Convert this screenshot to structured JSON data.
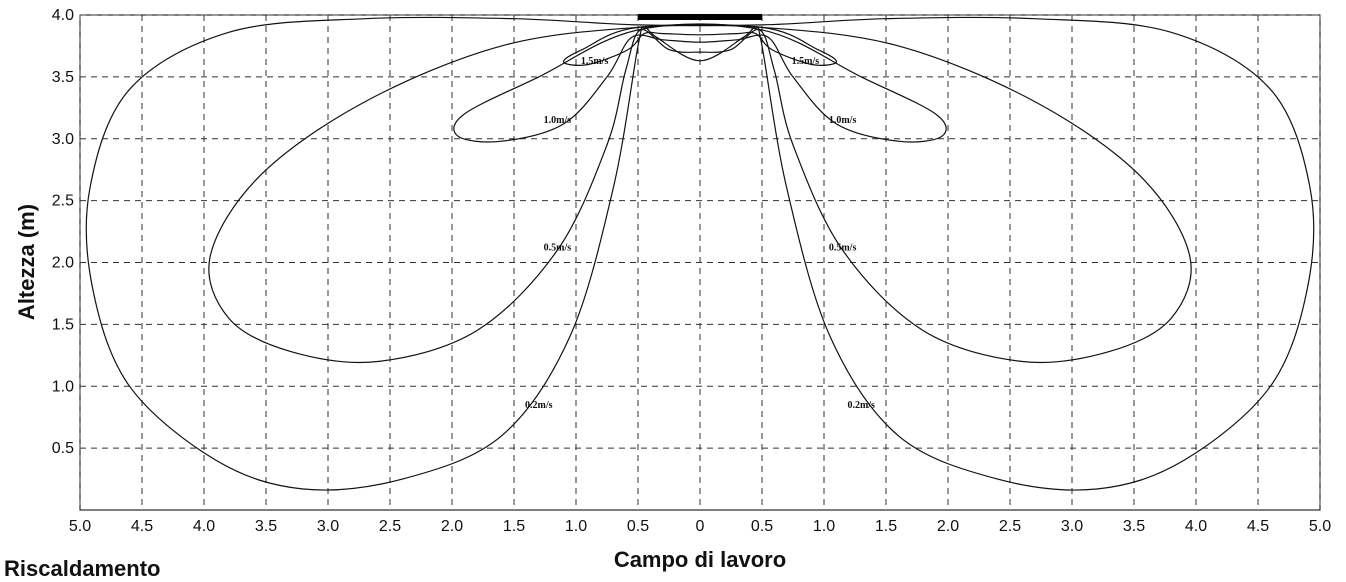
{
  "chart_data": {
    "type": "line",
    "title": "",
    "xlabel": "Campo di lavoro",
    "ylabel": "Altezza (m)",
    "x_domain": [
      -5.0,
      5.0
    ],
    "x_tick_values": [
      -5.0,
      -4.5,
      -4.0,
      -3.5,
      -3.0,
      -2.5,
      -2.0,
      -1.5,
      -1.0,
      -0.5,
      0,
      0.5,
      1.0,
      1.5,
      2.0,
      2.5,
      3.0,
      3.5,
      4.0,
      4.5,
      5.0
    ],
    "x_tick_labels": [
      "5.0",
      "4.5",
      "4.0",
      "3.5",
      "3.0",
      "2.5",
      "2.0",
      "1.5",
      "1.0",
      "0.5",
      "0",
      "0.5",
      "1.0",
      "1.5",
      "2.0",
      "2.5",
      "3.0",
      "3.5",
      "4.0",
      "4.5",
      "5.0"
    ],
    "ylim": [
      0,
      4.0
    ],
    "y_tick_values": [
      0.5,
      1.0,
      1.5,
      2.0,
      2.5,
      3.0,
      3.5,
      4.0
    ],
    "y_tick_labels": [
      "0.5",
      "1.0",
      "1.5",
      "2.0",
      "2.5",
      "3.0",
      "3.5",
      "4.0"
    ],
    "grid": true,
    "grid_style": "dashed",
    "outlet": {
      "x_range": [
        -0.5,
        0.5
      ],
      "y": 4.0
    },
    "series": [
      {
        "label_text": "0.2m/s",
        "label_positions": [
          [
            -1.3,
            0.85
          ],
          [
            1.3,
            0.85
          ]
        ],
        "points": [
          [
            -0.5,
            3.92
          ],
          [
            -1.5,
            3.97
          ],
          [
            -2.7,
            3.97
          ],
          [
            -3.8,
            3.86
          ],
          [
            -4.6,
            3.4
          ],
          [
            -4.92,
            2.6
          ],
          [
            -4.9,
            1.8
          ],
          [
            -4.6,
            1.0
          ],
          [
            -3.9,
            0.4
          ],
          [
            -3.2,
            0.17
          ],
          [
            -2.4,
            0.25
          ],
          [
            -1.6,
            0.6
          ],
          [
            -1.05,
            1.4
          ],
          [
            -0.7,
            2.6
          ],
          [
            -0.5,
            3.75
          ],
          [
            -0.45,
            3.9
          ],
          [
            -0.35,
            3.82
          ],
          [
            0,
            3.63
          ],
          [
            0.35,
            3.82
          ],
          [
            0.45,
            3.9
          ],
          [
            0.5,
            3.75
          ],
          [
            0.7,
            2.6
          ],
          [
            1.05,
            1.4
          ],
          [
            1.6,
            0.6
          ],
          [
            2.4,
            0.25
          ],
          [
            3.2,
            0.17
          ],
          [
            3.9,
            0.4
          ],
          [
            4.6,
            1.0
          ],
          [
            4.9,
            1.8
          ],
          [
            4.92,
            2.6
          ],
          [
            4.6,
            3.4
          ],
          [
            3.8,
            3.86
          ],
          [
            2.7,
            3.97
          ],
          [
            1.5,
            3.97
          ],
          [
            0.5,
            3.92
          ]
        ]
      },
      {
        "label_text": "0.5m/s",
        "label_positions": [
          [
            -1.15,
            2.12
          ],
          [
            1.15,
            2.12
          ]
        ],
        "points": [
          [
            -0.5,
            3.9
          ],
          [
            -1.6,
            3.75
          ],
          [
            -2.7,
            3.3
          ],
          [
            -3.55,
            2.7
          ],
          [
            -3.95,
            2.05
          ],
          [
            -3.8,
            1.55
          ],
          [
            -3.3,
            1.28
          ],
          [
            -2.6,
            1.2
          ],
          [
            -1.8,
            1.45
          ],
          [
            -1.15,
            2.1
          ],
          [
            -0.75,
            2.95
          ],
          [
            -0.6,
            3.55
          ],
          [
            -0.48,
            3.88
          ],
          [
            -0.25,
            3.72
          ],
          [
            0,
            3.7
          ],
          [
            0.25,
            3.72
          ],
          [
            0.48,
            3.88
          ],
          [
            0.6,
            3.55
          ],
          [
            0.75,
            2.95
          ],
          [
            1.15,
            2.1
          ],
          [
            1.8,
            1.45
          ],
          [
            2.6,
            1.2
          ],
          [
            3.3,
            1.28
          ],
          [
            3.8,
            1.55
          ],
          [
            3.95,
            2.05
          ],
          [
            3.55,
            2.7
          ],
          [
            2.7,
            3.3
          ],
          [
            1.6,
            3.75
          ],
          [
            0.5,
            3.9
          ]
        ]
      },
      {
        "label_text": "1.0m/s",
        "label_positions": [
          [
            -1.15,
            3.15
          ],
          [
            1.15,
            3.15
          ]
        ],
        "points": [
          [
            -0.5,
            3.88
          ],
          [
            -1.3,
            3.5
          ],
          [
            -1.9,
            3.2
          ],
          [
            -1.95,
            3.02
          ],
          [
            -1.6,
            2.98
          ],
          [
            -1.1,
            3.12
          ],
          [
            -0.75,
            3.5
          ],
          [
            -0.55,
            3.82
          ],
          [
            -0.3,
            3.8
          ],
          [
            0,
            3.78
          ],
          [
            0.3,
            3.8
          ],
          [
            0.55,
            3.82
          ],
          [
            0.75,
            3.5
          ],
          [
            1.1,
            3.12
          ],
          [
            1.6,
            2.98
          ],
          [
            1.95,
            3.02
          ],
          [
            1.9,
            3.2
          ],
          [
            1.3,
            3.5
          ],
          [
            0.5,
            3.88
          ]
        ]
      },
      {
        "label_text": "1.5m/s",
        "label_positions": [
          [
            -0.85,
            3.63
          ],
          [
            0.85,
            3.63
          ]
        ],
        "points": [
          [
            -0.5,
            3.9
          ],
          [
            -0.95,
            3.72
          ],
          [
            -1.1,
            3.62
          ],
          [
            -0.9,
            3.6
          ],
          [
            -0.58,
            3.72
          ],
          [
            -0.45,
            3.85
          ],
          [
            -0.3,
            3.85
          ],
          [
            0,
            3.84
          ],
          [
            0.3,
            3.85
          ],
          [
            0.45,
            3.85
          ],
          [
            0.58,
            3.72
          ],
          [
            0.9,
            3.6
          ],
          [
            1.1,
            3.62
          ],
          [
            0.95,
            3.72
          ],
          [
            0.5,
            3.9
          ]
        ]
      }
    ]
  },
  "caption": "Riscaldamento"
}
